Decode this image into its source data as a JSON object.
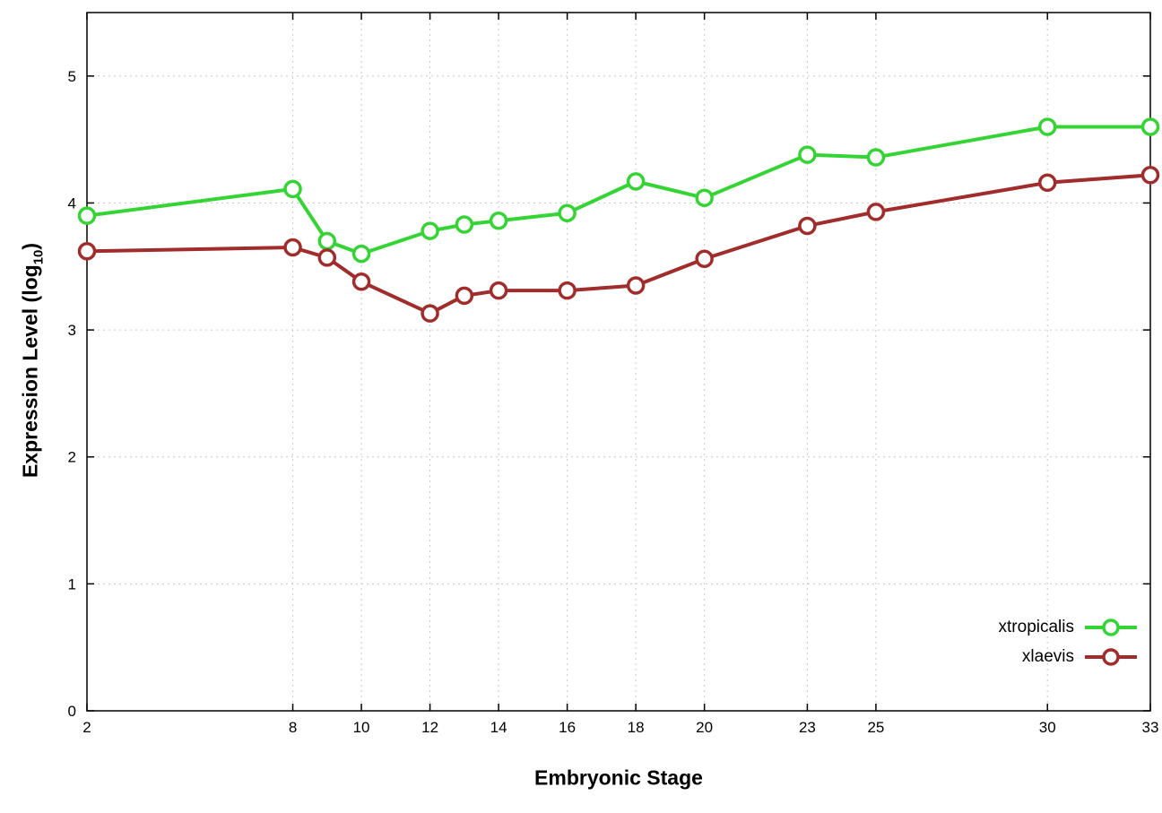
{
  "chart_data": {
    "type": "line",
    "title": "",
    "xlabel": "Embryonic Stage",
    "ylabel": "Expression Level (log10)",
    "ylabel_parts": {
      "pre": "Expression Level (log",
      "sub": "10",
      "post": ")"
    },
    "x": [
      2,
      8,
      9,
      10,
      12,
      13,
      14,
      16,
      18,
      20,
      23,
      25,
      30,
      33
    ],
    "x_ticks": [
      2,
      8,
      10,
      12,
      14,
      16,
      18,
      20,
      23,
      25,
      30,
      33
    ],
    "y_ticks": [
      0,
      1,
      2,
      3,
      4,
      5
    ],
    "xlim": [
      2,
      33
    ],
    "ylim": [
      0,
      5.5
    ],
    "grid": true,
    "legend_position": "inside-bottom-right",
    "series": [
      {
        "name": "xtropicalis",
        "color": "#35d435",
        "values": [
          3.9,
          4.11,
          3.7,
          3.6,
          3.78,
          3.83,
          3.86,
          3.92,
          4.17,
          4.04,
          4.38,
          4.36,
          4.6,
          4.6
        ]
      },
      {
        "name": "xlaevis",
        "color": "#a12c2c",
        "values": [
          3.62,
          3.65,
          3.57,
          3.38,
          3.13,
          3.27,
          3.31,
          3.31,
          3.35,
          3.56,
          3.82,
          3.93,
          4.16,
          4.22
        ]
      }
    ]
  }
}
